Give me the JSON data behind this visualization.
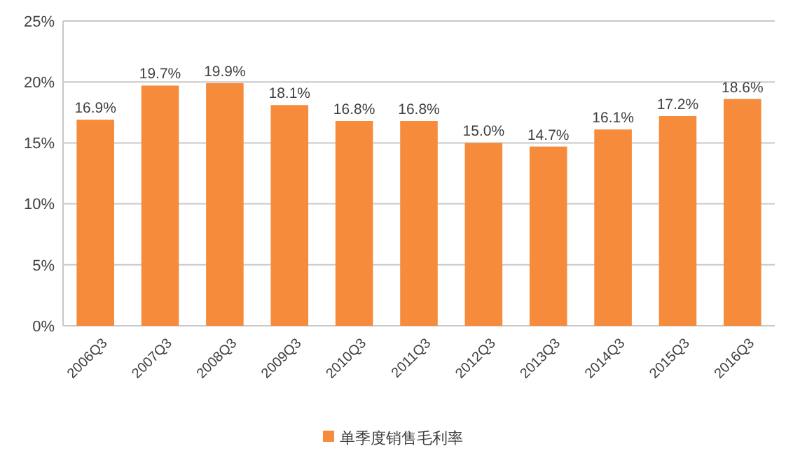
{
  "chart_data": {
    "type": "bar",
    "categories": [
      "2006Q3",
      "2007Q3",
      "2008Q3",
      "2009Q3",
      "2010Q3",
      "2011Q3",
      "2012Q3",
      "2013Q3",
      "2014Q3",
      "2015Q3",
      "2016Q3"
    ],
    "series": [
      {
        "name": "单季度销售毛利率",
        "color": "#f58b3b",
        "values": [
          16.9,
          19.7,
          19.9,
          18.1,
          16.8,
          16.8,
          15.0,
          14.7,
          16.1,
          17.2,
          18.6
        ],
        "value_labels": [
          "16.9%",
          "19.7%",
          "19.9%",
          "18.1%",
          "16.8%",
          "16.8%",
          "15.0%",
          "14.7%",
          "16.1%",
          "17.2%",
          "18.6%"
        ]
      }
    ],
    "ylim": [
      0,
      25
    ],
    "yticks": [
      {
        "value": 0,
        "label": "0%"
      },
      {
        "value": 5,
        "label": "5%"
      },
      {
        "value": 10,
        "label": "10%"
      },
      {
        "value": 15,
        "label": "15%"
      },
      {
        "value": 20,
        "label": "20%"
      },
      {
        "value": 25,
        "label": "25%"
      }
    ],
    "grid": "y",
    "legend": "bottom"
  }
}
